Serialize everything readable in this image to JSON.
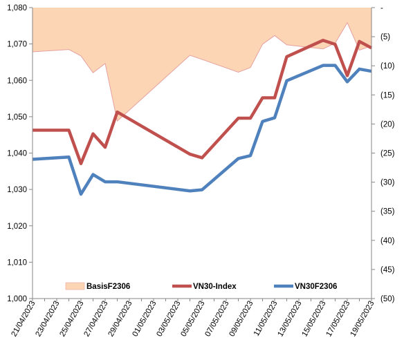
{
  "chart_data": {
    "type": "line",
    "x_dates": [
      "2023-04-21",
      "2023-04-24",
      "2023-04-25",
      "2023-04-26",
      "2023-04-27",
      "2023-04-28",
      "2023-05-04",
      "2023-05-05",
      "2023-05-08",
      "2023-05-09",
      "2023-05-10",
      "2023-05-11",
      "2023-05-12",
      "2023-05-15",
      "2023-05-16",
      "2023-05-17",
      "2023-05-18",
      "2023-05-19"
    ],
    "x_tick_labels": [
      "21/04/2023",
      "23/04/2023",
      "25/04/2023",
      "27/04/2023",
      "29/04/2023",
      "01/05/2023",
      "03/05/2023",
      "05/05/2023",
      "07/05/2023",
      "09/05/2023",
      "11/05/2023",
      "13/05/2023",
      "15/05/2023",
      "17/05/2023",
      "19/05/2023"
    ],
    "left_axis": {
      "ylim": [
        1000,
        1080
      ],
      "tick_labels": [
        "1,080",
        "1,070",
        "1,060",
        "1,050",
        "1,040",
        "1,030",
        "1,020",
        "1,010",
        "1,000"
      ]
    },
    "right_axis": {
      "ylim": [
        -50,
        0
      ],
      "tick_labels": [
        "-",
        "(5)",
        "(10)",
        "(15)",
        "(20)",
        "(25)",
        "(30)",
        "(35)",
        "(40)",
        "(45)",
        "(50)"
      ]
    },
    "series": [
      {
        "name": "BasisF2306",
        "type": "area",
        "axis": "right",
        "color": "#fcd5b5",
        "edge_color": "#e6a0a0",
        "values": [
          -7.6,
          -7.2,
          -8.3,
          -11.2,
          -9.6,
          -19.5,
          -8.2,
          -8.9,
          -11.1,
          -10.3,
          -6.3,
          -4.8,
          -6.4,
          -7.1,
          -6.1,
          -2.6,
          -7.3,
          -6.6
        ]
      },
      {
        "name": "VN30-Index",
        "type": "line",
        "axis": "left",
        "color": "#c0504d",
        "values": [
          1046.3,
          1046.3,
          1037.1,
          1045.3,
          1041.6,
          1051.3,
          1039.7,
          1038.7,
          1049.6,
          1049.6,
          1055.2,
          1055.2,
          1066.5,
          1071.0,
          1069.9,
          1061.3,
          1070.7,
          1068.9
        ]
      },
      {
        "name": "VN30F2306",
        "type": "line",
        "axis": "left",
        "color": "#4f81bd",
        "values": [
          1038.3,
          1038.9,
          1028.7,
          1034.1,
          1032.1,
          1032.1,
          1029.6,
          1029.9,
          1038.5,
          1039.3,
          1048.7,
          1049.7,
          1059.9,
          1064.1,
          1064.1,
          1059.6,
          1063.1,
          1062.5
        ]
      }
    ],
    "legend": {
      "placement": "bottom-inside",
      "labels": [
        "BasisF2306",
        "VN30-Index",
        "VN30F2306"
      ]
    },
    "grid": false
  }
}
